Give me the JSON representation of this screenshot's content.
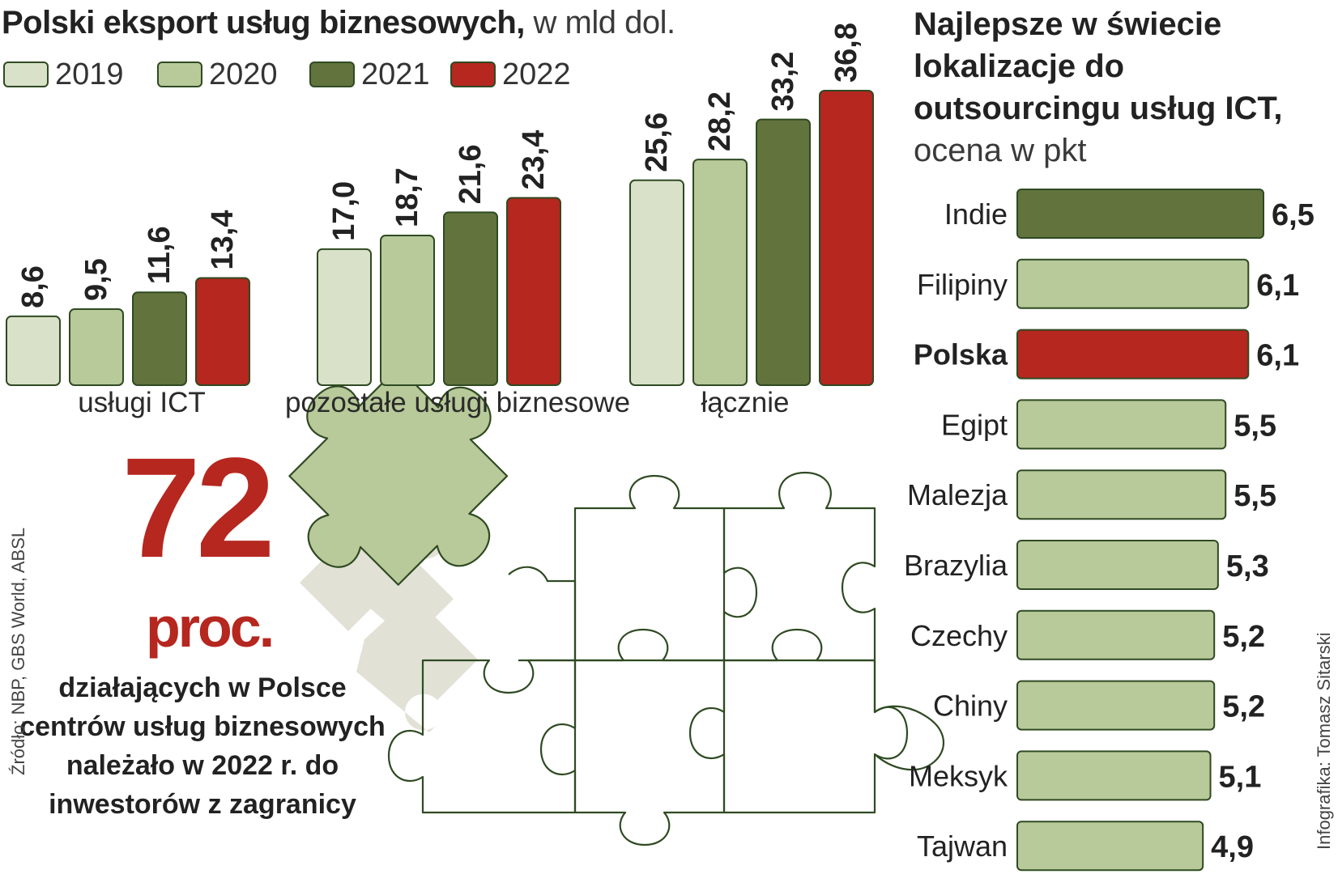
{
  "header": {
    "title_bold": "Polski eksport usług biznesowych,",
    "title_unit": " w mld dol."
  },
  "colors": {
    "2019": "#d9e1c9",
    "2020": "#b8c99a",
    "2021": "#62733d",
    "2022": "#b5271f",
    "bar_border": "#2f4a22",
    "puzzle_fill": "#b8c99a",
    "puzzle_shadow": "#e2e1d6",
    "puzzle_line": "#2f4a22"
  },
  "stat": {
    "number": "72",
    "unit": "proc.",
    "description": "działających w Polsce centrów usług biznesowych należało w 2022 r. do inwestorów z zagranicy"
  },
  "footer": {
    "source": "Źródło: NBP, GBS World, ABSL",
    "credit": "Infografika: Tomasz Sitarski"
  },
  "chart_data": [
    {
      "type": "bar",
      "title": "Polski eksport usług biznesowych, w mld dol.",
      "categories": [
        "usługi ICT",
        "pozostałe usługi biznesowe",
        "łącznie"
      ],
      "series": [
        {
          "name": "2019",
          "values": [
            8.6,
            17.0,
            25.6
          ],
          "labels": [
            "8,6",
            "17,0",
            "25,6"
          ]
        },
        {
          "name": "2020",
          "values": [
            9.5,
            18.7,
            28.2
          ],
          "labels": [
            "9,5",
            "18,7",
            "28,2"
          ]
        },
        {
          "name": "2021",
          "values": [
            11.6,
            21.6,
            33.2
          ],
          "labels": [
            "11,6",
            "21,6",
            "33,2"
          ]
        },
        {
          "name": "2022",
          "values": [
            13.4,
            23.4,
            36.8
          ],
          "labels": [
            "13,4",
            "23,4",
            "36,8"
          ]
        }
      ],
      "legend": "top-left",
      "ylim": [
        0,
        36.8
      ],
      "grid": false
    },
    {
      "type": "bar",
      "orientation": "horizontal",
      "title_bold": "Najlepsze w świecie lokalizacje do outsourcingu usług ICT,",
      "title_unit": " ocena w pkt",
      "categories": [
        "Indie",
        "Filipiny",
        "Polska",
        "Egipt",
        "Malezja",
        "Brazylia",
        "Czechy",
        "Chiny",
        "Meksyk",
        "Tajwan"
      ],
      "values": [
        6.5,
        6.1,
        6.1,
        5.5,
        5.5,
        5.3,
        5.2,
        5.2,
        5.1,
        4.9
      ],
      "labels": [
        "6,5",
        "6,1",
        "6,1",
        "5,5",
        "5,5",
        "5,3",
        "5,2",
        "5,2",
        "5,1",
        "4,9"
      ],
      "highlight": "Polska",
      "colors": [
        "#62733d",
        "#b8c99a",
        "#b5271f",
        "#b8c99a",
        "#b8c99a",
        "#b8c99a",
        "#b8c99a",
        "#b8c99a",
        "#b8c99a",
        "#b8c99a"
      ],
      "grid": false
    }
  ]
}
